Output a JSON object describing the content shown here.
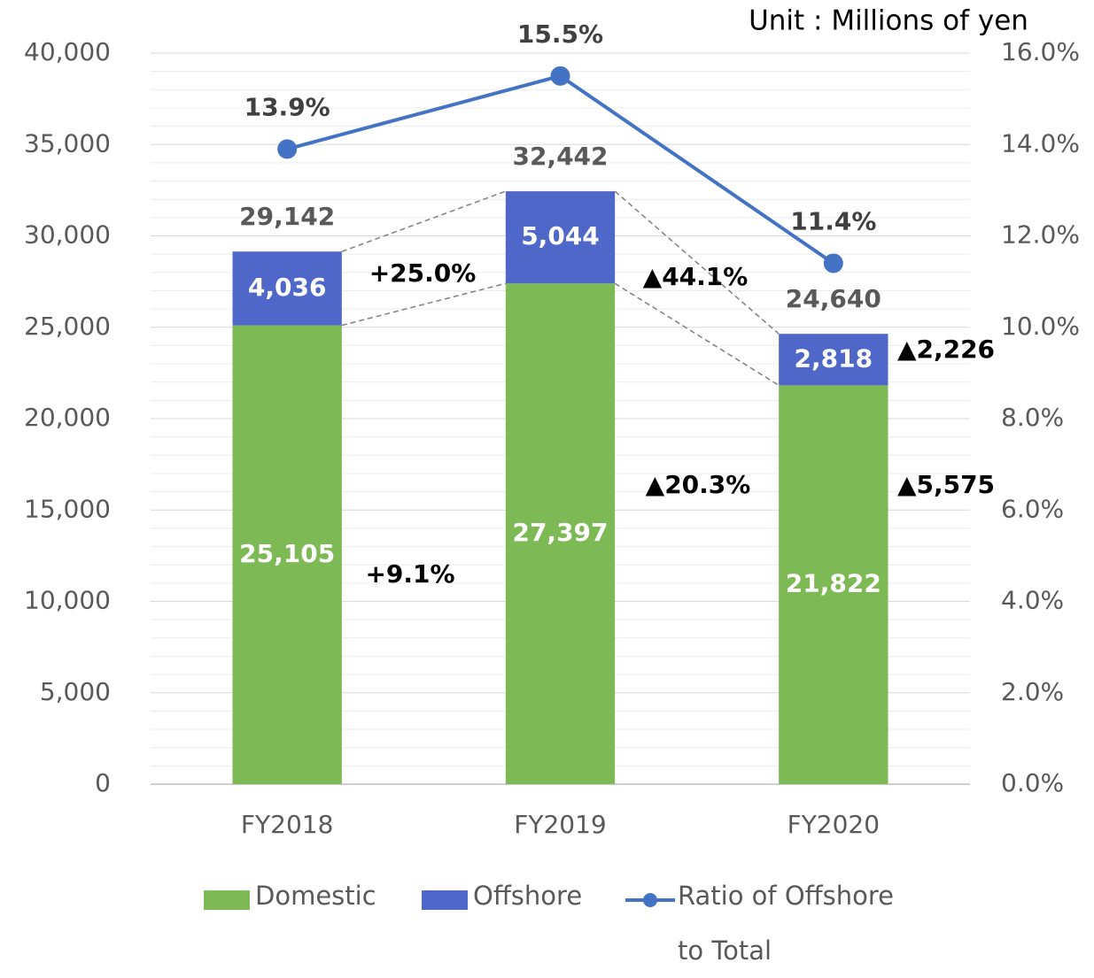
{
  "chart_data": {
    "type": "bar",
    "title": "Unit : Millions of yen",
    "categories": [
      "FY2018",
      "FY2019",
      "FY2020"
    ],
    "stacked": true,
    "series": [
      {
        "name": "Domestic",
        "color": "#7db954",
        "values": [
          25105,
          27397,
          21822
        ],
        "value_labels": [
          "25,105",
          "27,397",
          "21,822"
        ]
      },
      {
        "name": "Offshore",
        "color": "#4f67c8",
        "values": [
          4036,
          5044,
          2818
        ],
        "value_labels": [
          "4,036",
          "5,044",
          "2,818"
        ]
      },
      {
        "name": "Ratio of Offshore to Total",
        "type": "line",
        "axis": "y2",
        "color": "#4472c4",
        "values": [
          13.9,
          15.5,
          11.4
        ],
        "value_labels": [
          "13.9%",
          "15.5%",
          "11.4%"
        ]
      }
    ],
    "totals": [
      29142,
      32442,
      24640
    ],
    "total_labels": [
      "29,142",
      "32,442",
      "24,640"
    ],
    "annotations": [
      "+25.0%",
      "▲44.1%",
      "▲2,226",
      "+9.1%",
      "▲20.3%",
      "▲5,575"
    ],
    "ylim": [
      0,
      40000
    ],
    "yticks": [
      0,
      {
        "value": 5000,
        "label": "5,000"
      },
      {
        "value": 10000,
        "label": "10,000"
      },
      {
        "value": 15000,
        "label": "15,000"
      },
      {
        "value": 20000,
        "label": "20,000"
      },
      {
        "value": 25000,
        "label": "25,000"
      },
      {
        "value": 30000,
        "label": "30,000"
      },
      {
        "value": 35000,
        "label": "35,000"
      },
      {
        "value": 40000,
        "label": "40,000"
      }
    ],
    "y2lim": [
      0,
      16
    ],
    "y2ticks": [
      {
        "value": 0,
        "label": "0.0%"
      },
      {
        "value": 2,
        "label": "2.0%"
      },
      {
        "value": 4,
        "label": "4.0%"
      },
      {
        "value": 6,
        "label": "6.0%"
      },
      {
        "value": 8,
        "label": "8.0%"
      },
      {
        "value": 10,
        "label": "10.0%"
      },
      {
        "value": 12,
        "label": "12.0%"
      },
      {
        "value": 14,
        "label": "14.0%"
      },
      {
        "value": 16,
        "label": "16.0%"
      }
    ],
    "grid": true,
    "minor_grid": true,
    "legend": "bottom"
  }
}
